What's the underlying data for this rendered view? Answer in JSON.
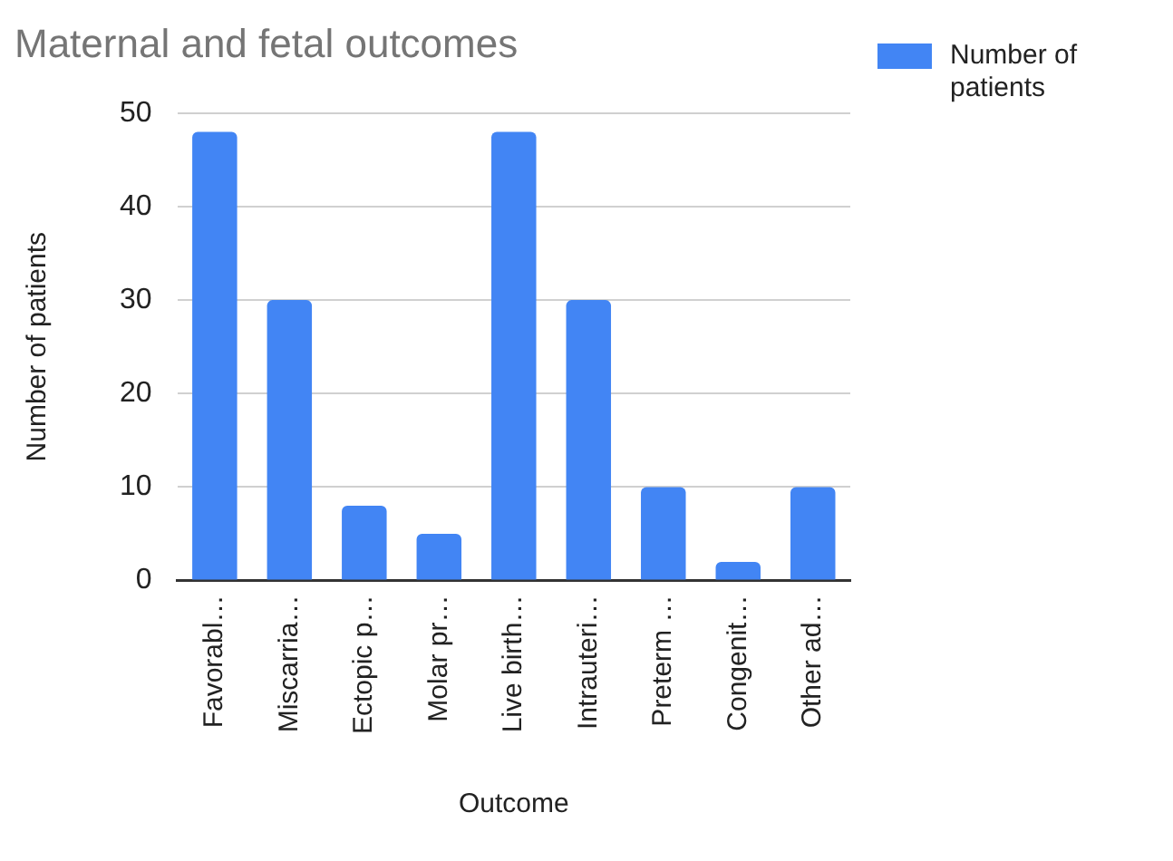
{
  "chart_data": {
    "type": "bar",
    "title": "Maternal and fetal outcomes",
    "xlabel": "Outcome",
    "ylabel": "Number of patients",
    "categories": [
      "Favorabl…",
      "Miscarria…",
      "Ectopic p…",
      "Molar pr…",
      "Live birth…",
      "Intrauteri…",
      "Preterm …",
      "Congenit…",
      "Other ad…"
    ],
    "series": [
      {
        "name": "Number of patients",
        "color": "#4285f4",
        "values": [
          48,
          30,
          8,
          5,
          48,
          30,
          10,
          2,
          10
        ]
      }
    ],
    "ylim": [
      0,
      50
    ],
    "yticks": [
      0,
      10,
      20,
      30,
      40,
      50
    ],
    "grid": "y",
    "legend": "top right"
  }
}
